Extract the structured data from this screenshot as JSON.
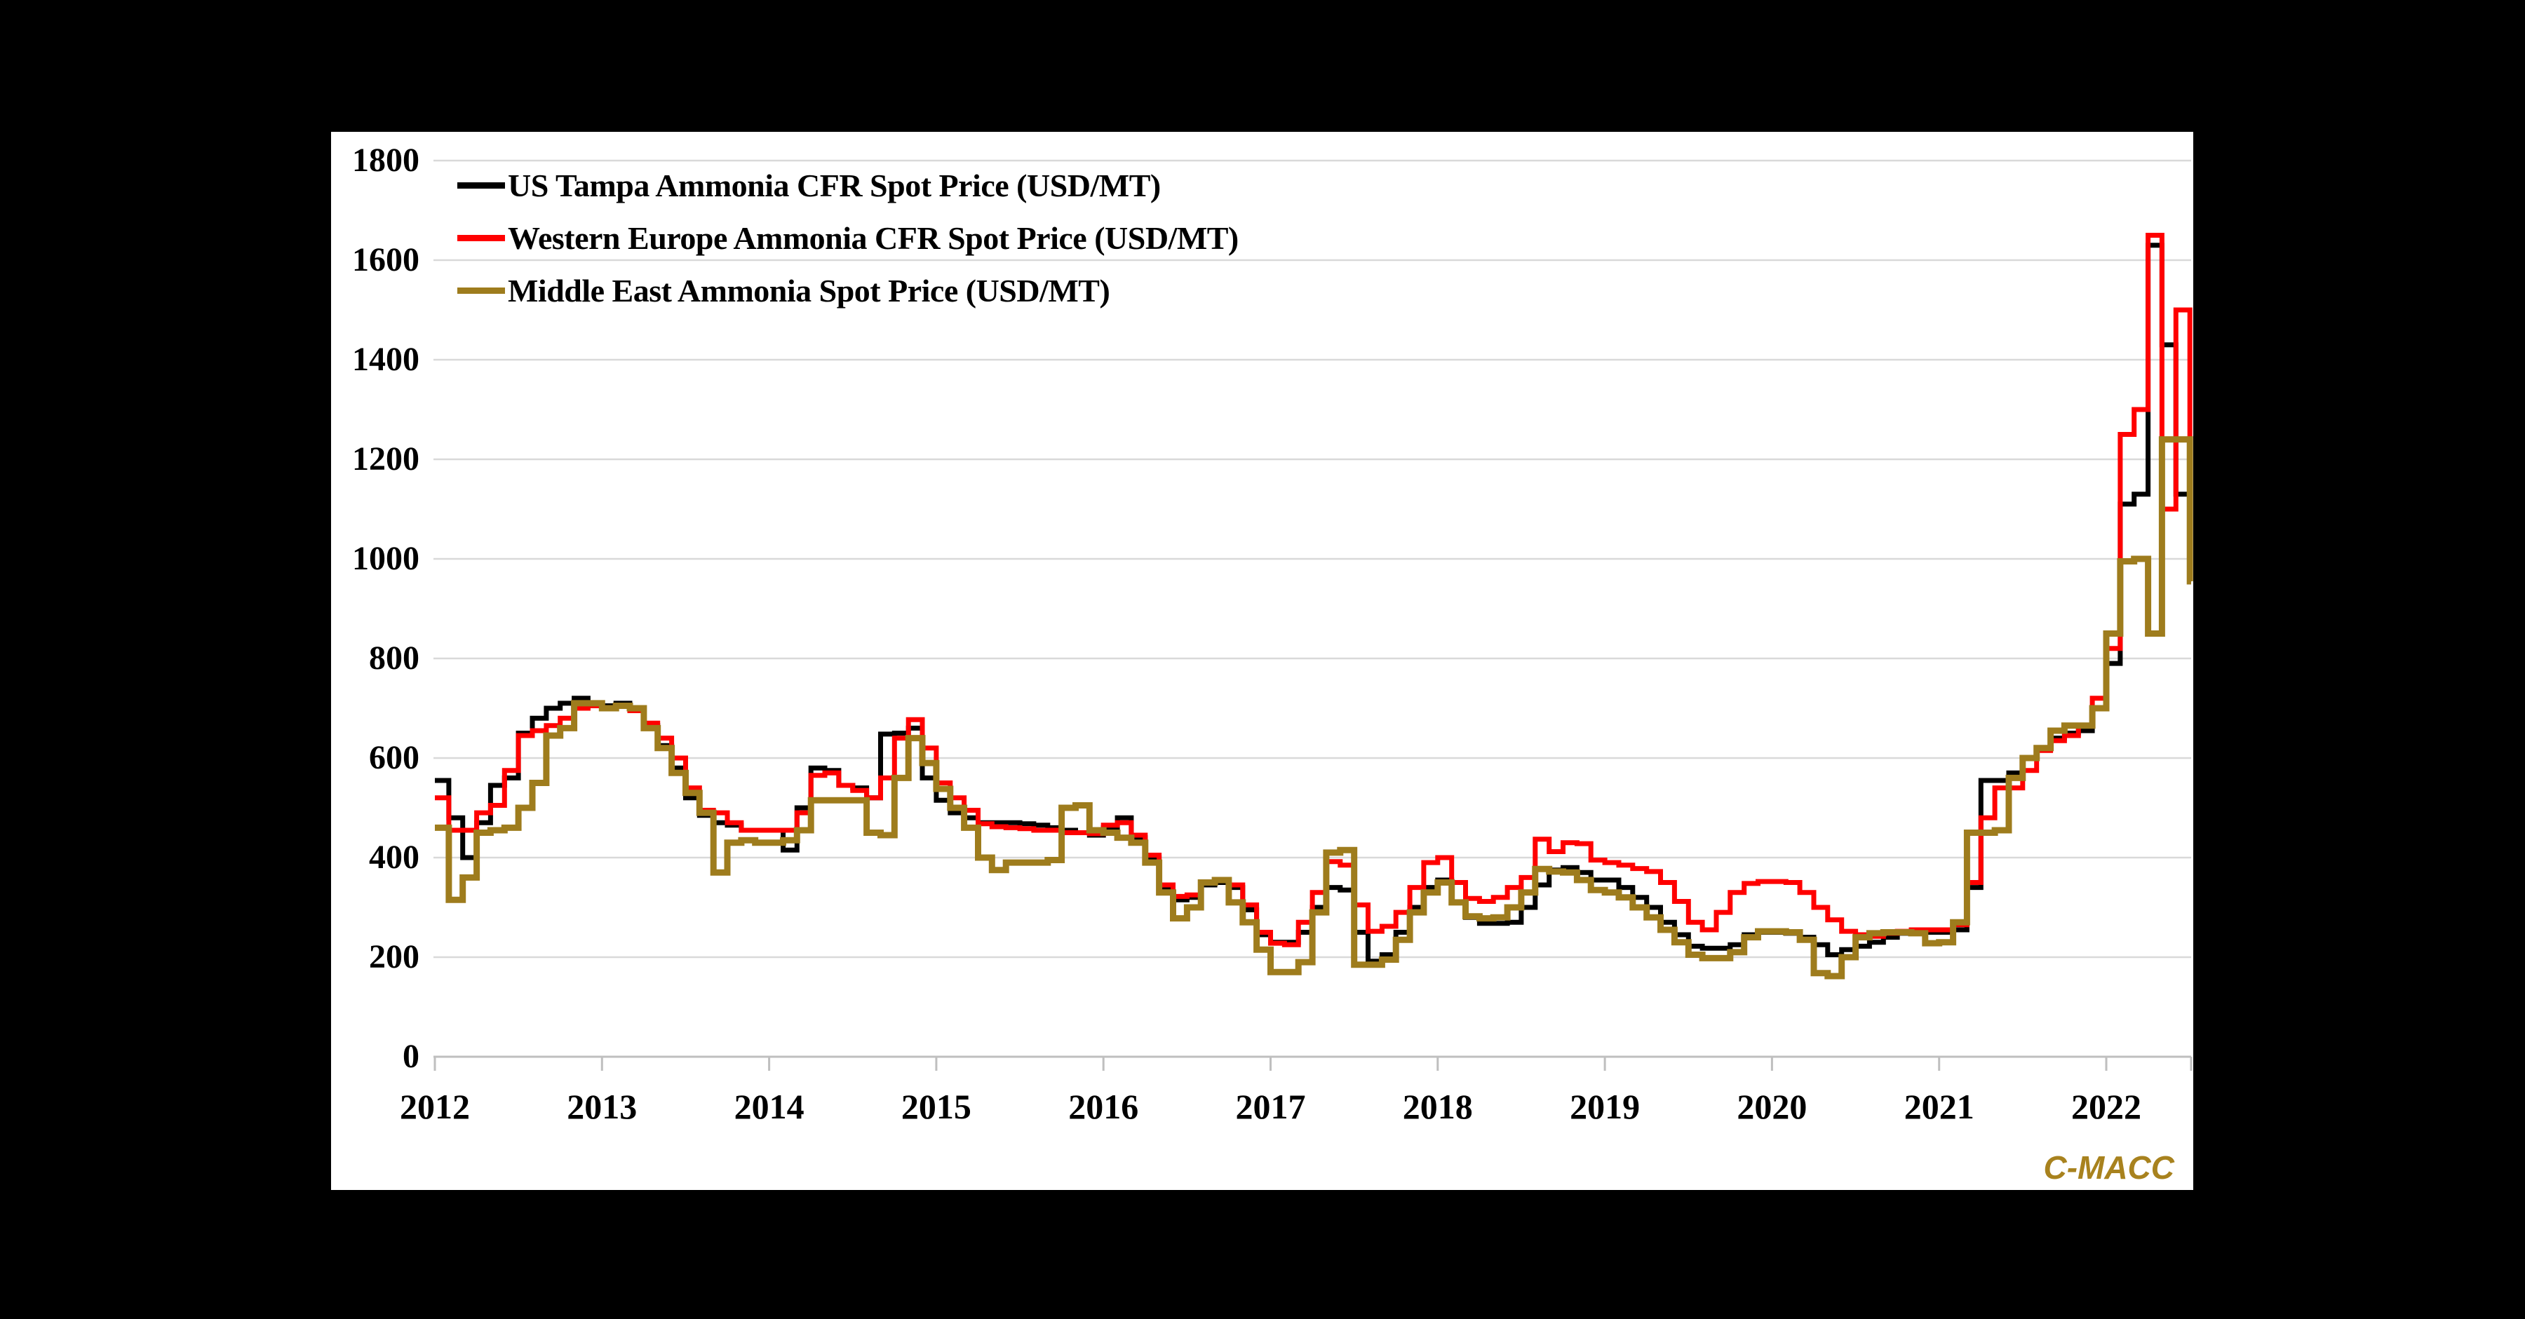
{
  "watermark": "C-MACC",
  "colors": {
    "background": "#000000",
    "panel_bg": "#FFFFFF",
    "gridline": "#D9D9D9",
    "axis": "#BFBFBF",
    "text": "#000000",
    "watermark": "#A8821E",
    "us_tampa": "#000000",
    "western_europe": "#FF0000",
    "middle_east": "#9E7C1D"
  },
  "chart_data": {
    "type": "line",
    "title": "",
    "xlabel": "",
    "ylabel": "",
    "grid": "horizontal",
    "legend_position": "top-left",
    "x_start_year": 2012,
    "months_per_point": 1,
    "x_tick_labels": [
      "2012",
      "2013",
      "2014",
      "2015",
      "2016",
      "2017",
      "2018",
      "2019",
      "2020",
      "2021",
      "2022"
    ],
    "y_axis": {
      "min": 0,
      "max": 1800,
      "tick_interval": 200,
      "tick_labels": [
        "0",
        "200",
        "400",
        "600",
        "800",
        "1000",
        "1200",
        "1400",
        "1600",
        "1800"
      ]
    },
    "series": [
      {
        "name": "US Tampa Ammonia CFR Spot Price (USD/MT)",
        "color": "#000000",
        "values": [
          555,
          480,
          400,
          470,
          545,
          560,
          650,
          680,
          700,
          710,
          720,
          710,
          705,
          710,
          700,
          665,
          625,
          580,
          520,
          485,
          470,
          465,
          455,
          455,
          455,
          415,
          500,
          580,
          575,
          545,
          540,
          520,
          648,
          650,
          660,
          560,
          515,
          490,
          480,
          470,
          470,
          470,
          468,
          465,
          460,
          455,
          450,
          445,
          460,
          480,
          440,
          400,
          340,
          315,
          320,
          345,
          350,
          340,
          295,
          245,
          230,
          230,
          250,
          300,
          340,
          335,
          250,
          192,
          205,
          250,
          300,
          340,
          355,
          310,
          280,
          268,
          268,
          270,
          300,
          345,
          375,
          380,
          370,
          355,
          355,
          340,
          320,
          300,
          270,
          245,
          222,
          218,
          218,
          225,
          245,
          250,
          250,
          248,
          240,
          225,
          205,
          215,
          222,
          230,
          240,
          248,
          250,
          250,
          250,
          255,
          340,
          555,
          555,
          570,
          600,
          620,
          640,
          650,
          655,
          700,
          790,
          1110,
          1130,
          1630,
          1430,
          1130,
          965
        ]
      },
      {
        "name": "Western Europe Ammonia CFR Spot Price (USD/MT)",
        "color": "#FF0000",
        "values": [
          520,
          455,
          455,
          490,
          505,
          575,
          645,
          655,
          665,
          680,
          700,
          705,
          700,
          705,
          695,
          670,
          640,
          600,
          540,
          495,
          490,
          470,
          455,
          455,
          455,
          455,
          490,
          565,
          570,
          545,
          535,
          520,
          560,
          640,
          677,
          620,
          550,
          520,
          495,
          468,
          462,
          460,
          458,
          455,
          455,
          450,
          450,
          448,
          465,
          470,
          445,
          405,
          345,
          322,
          325,
          350,
          355,
          345,
          305,
          250,
          228,
          225,
          270,
          330,
          392,
          385,
          305,
          252,
          262,
          290,
          340,
          390,
          400,
          350,
          318,
          312,
          320,
          340,
          360,
          437,
          412,
          430,
          428,
          395,
          390,
          385,
          378,
          372,
          350,
          312,
          270,
          255,
          290,
          330,
          348,
          352,
          352,
          350,
          330,
          300,
          275,
          252,
          245,
          242,
          248,
          252,
          255,
          255,
          255,
          265,
          350,
          480,
          540,
          540,
          575,
          615,
          635,
          645,
          665,
          720,
          820,
          1250,
          1300,
          1650,
          1100,
          1500,
          1090
        ]
      },
      {
        "name": "Middle East Ammonia Spot Price (USD/MT)",
        "color": "#9E7C1D",
        "values": [
          460,
          315,
          360,
          450,
          455,
          460,
          500,
          550,
          645,
          660,
          710,
          710,
          700,
          705,
          700,
          660,
          620,
          570,
          530,
          490,
          370,
          430,
          435,
          430,
          430,
          435,
          455,
          515,
          515,
          515,
          515,
          450,
          445,
          560,
          640,
          590,
          538,
          500,
          460,
          400,
          375,
          390,
          390,
          390,
          395,
          500,
          505,
          455,
          450,
          440,
          430,
          390,
          330,
          278,
          300,
          350,
          355,
          310,
          270,
          215,
          170,
          170,
          190,
          290,
          410,
          415,
          185,
          185,
          195,
          235,
          290,
          330,
          350,
          310,
          282,
          278,
          280,
          300,
          330,
          377,
          372,
          370,
          355,
          335,
          330,
          320,
          300,
          280,
          255,
          230,
          205,
          198,
          198,
          210,
          240,
          252,
          252,
          250,
          235,
          168,
          162,
          200,
          240,
          248,
          250,
          250,
          248,
          228,
          230,
          270,
          450,
          450,
          455,
          560,
          600,
          620,
          655,
          665,
          665,
          700,
          850,
          995,
          1000,
          850,
          1240,
          1240,
          955
        ]
      }
    ]
  }
}
